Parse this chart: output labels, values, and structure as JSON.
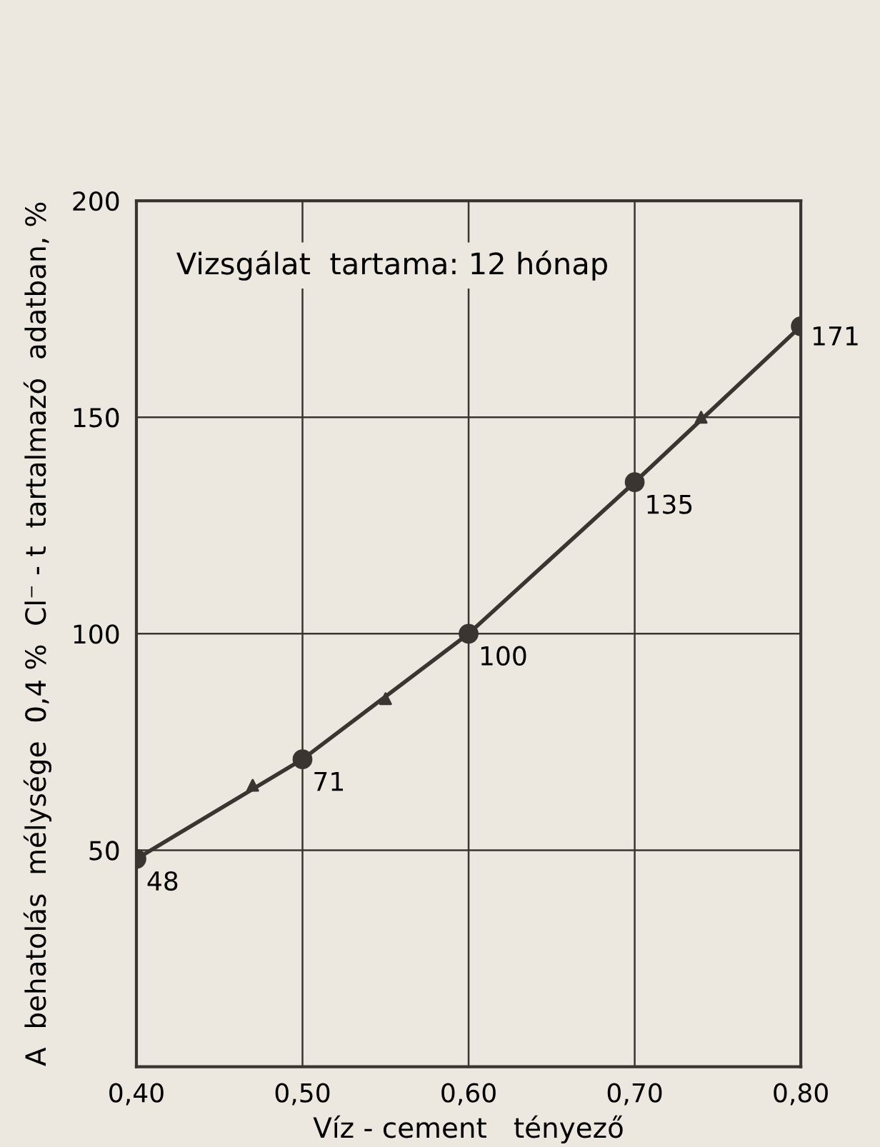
{
  "chart_data": {
    "type": "line",
    "xlabel": "Víz - cement   tényező",
    "ylabel": "A  behatolás  mélysége  0,4 %  Cl⁻ - t  tartalmazó  adatban, %",
    "annotations": [
      "Vizsgálat  tartama: 12 hónap"
    ],
    "series": [
      {
        "color": "#3a3530",
        "marker": "circle",
        "x": [
          0.4,
          0.5,
          0.6,
          0.7,
          0.8
        ],
        "values": [
          48,
          71,
          100,
          135,
          171
        ],
        "value_labels": [
          "48",
          "71",
          "100",
          "135",
          "171"
        ]
      },
      {
        "type": "scatter",
        "color": "#3a3530",
        "marker": "triangle",
        "x": [
          0.47,
          0.55,
          0.74
        ],
        "values": [
          65,
          85,
          150
        ]
      }
    ],
    "xlim": [
      0.4,
      0.8
    ],
    "xticks": [
      {
        "value": 0.4,
        "label": "0,40"
      },
      {
        "value": 0.5,
        "label": "0,50"
      },
      {
        "value": 0.6,
        "label": "0,60"
      },
      {
        "value": 0.7,
        "label": "0,70"
      },
      {
        "value": 0.8,
        "label": "0,80"
      }
    ],
    "ylim": [
      0,
      200
    ],
    "yticks": [
      50,
      100,
      150,
      200
    ],
    "grid": true
  }
}
